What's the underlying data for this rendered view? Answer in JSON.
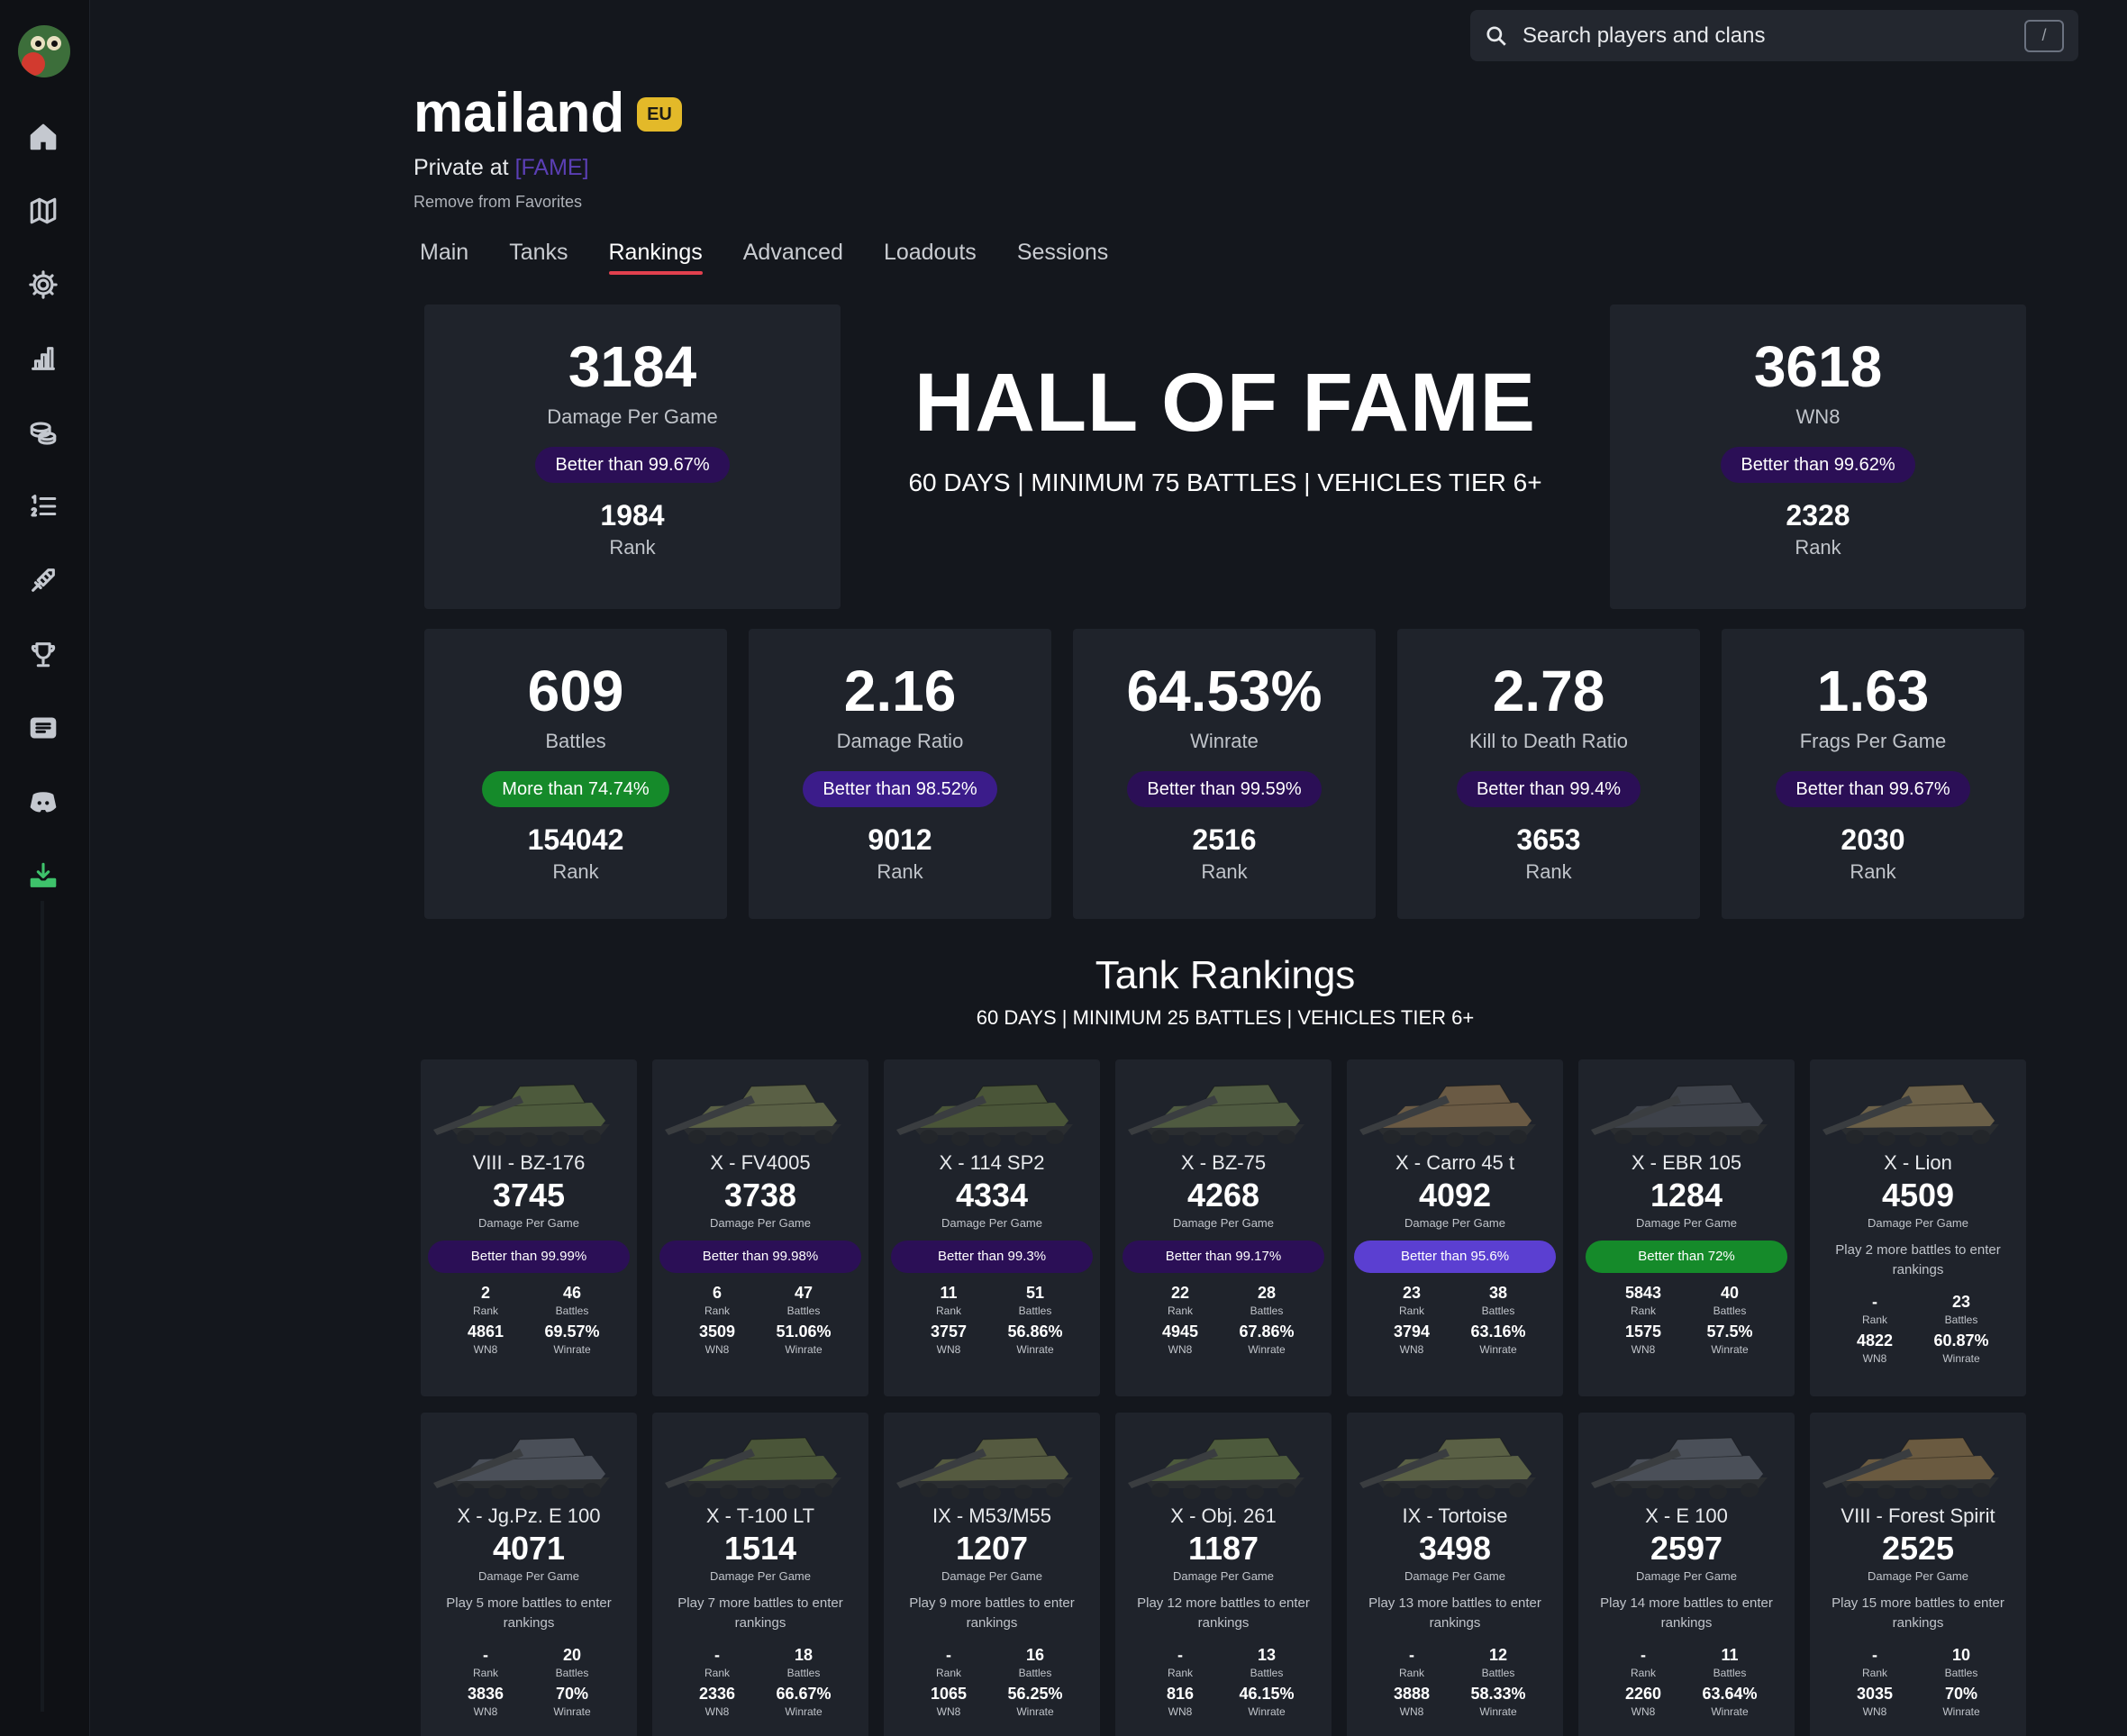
{
  "search": {
    "placeholder": "Search players and clans",
    "shortcut": "/"
  },
  "sidebar": {
    "items": [
      {
        "icon": "home-icon"
      },
      {
        "icon": "map-icon"
      },
      {
        "icon": "gear-icon"
      },
      {
        "icon": "bar-chart-icon"
      },
      {
        "icon": "coins-icon"
      },
      {
        "icon": "ordered-list-icon"
      },
      {
        "icon": "tank-shell-icon"
      },
      {
        "icon": "trophy-icon"
      },
      {
        "icon": "news-icon"
      },
      {
        "icon": "discord-icon"
      },
      {
        "icon": "download-icon"
      }
    ]
  },
  "player": {
    "name": "mailand",
    "region": "EU",
    "role_prefix": "Private at ",
    "clan": "[FAME]",
    "favorites_action": "Remove from Favorites"
  },
  "tabs": [
    "Main",
    "Tanks",
    "Rankings",
    "Advanced",
    "Loadouts",
    "Sessions"
  ],
  "active_tab": "Rankings",
  "hall_of_fame": {
    "title": "HALL OF FAME",
    "subtitle": "60 DAYS | MINIMUM 75 BATTLES | VEHICLES TIER 6+",
    "top_left": {
      "value": "3184",
      "label": "Damage Per Game",
      "badge": "Better than 99.67%",
      "rank": "1984",
      "rank_label": "Rank"
    },
    "top_right": {
      "value": "3618",
      "label": "WN8",
      "badge": "Better than 99.62%",
      "rank": "2328",
      "rank_label": "Rank"
    },
    "stats": [
      {
        "value": "609",
        "label": "Battles",
        "badge": "More than 74.74%",
        "badge_style": "green",
        "rank": "154042",
        "rank_label": "Rank"
      },
      {
        "value": "2.16",
        "label": "Damage Ratio",
        "badge": "Better than 98.52%",
        "badge_style": "mid",
        "rank": "9012",
        "rank_label": "Rank"
      },
      {
        "value": "64.53%",
        "label": "Winrate",
        "badge": "Better than 99.59%",
        "badge_style": "dark",
        "rank": "2516",
        "rank_label": "Rank"
      },
      {
        "value": "2.78",
        "label": "Kill to Death Ratio",
        "badge": "Better than 99.4%",
        "badge_style": "dark",
        "rank": "3653",
        "rank_label": "Rank"
      },
      {
        "value": "1.63",
        "label": "Frags Per Game",
        "badge": "Better than 99.67%",
        "badge_style": "dark",
        "rank": "2030",
        "rank_label": "Rank"
      }
    ]
  },
  "tank_rankings": {
    "title": "Tank Rankings",
    "subtitle": "60 DAYS | MINIMUM 25 BATTLES | VEHICLES TIER 6+",
    "labels": {
      "dpg": "Damage Per Game",
      "rank": "Rank",
      "battles": "Battles",
      "wn8": "WN8",
      "winrate": "Winrate"
    },
    "tanks": [
      {
        "name": "VIII - BZ-176",
        "dpg": "3745",
        "badge": "Better than 99.99%",
        "badge_style": "dark",
        "note": "",
        "rank": "2",
        "battles": "46",
        "wn8": "4861",
        "winrate": "69.57%",
        "color": "#4d5a3c"
      },
      {
        "name": "X - FV4005",
        "dpg": "3738",
        "badge": "Better than 99.98%",
        "badge_style": "dark",
        "note": "",
        "rank": "6",
        "battles": "47",
        "wn8": "3509",
        "winrate": "51.06%",
        "color": "#5a6045"
      },
      {
        "name": "X - 114 SP2",
        "dpg": "4334",
        "badge": "Better than 99.3%",
        "badge_style": "dark",
        "note": "",
        "rank": "11",
        "battles": "51",
        "wn8": "3757",
        "winrate": "56.86%",
        "color": "#4a5538"
      },
      {
        "name": "X - BZ-75",
        "dpg": "4268",
        "badge": "Better than 99.17%",
        "badge_style": "dark",
        "note": "",
        "rank": "22",
        "battles": "28",
        "wn8": "4945",
        "winrate": "67.86%",
        "color": "#4f5a40"
      },
      {
        "name": "X - Carro 45 t",
        "dpg": "4092",
        "badge": "Better than 95.6%",
        "badge_style": "violet",
        "note": "",
        "rank": "23",
        "battles": "38",
        "wn8": "3794",
        "winrate": "63.16%",
        "color": "#6a5a44"
      },
      {
        "name": "X - EBR 105",
        "dpg": "1284",
        "badge": "Better than 72%",
        "badge_style": "green",
        "note": "",
        "rank": "5843",
        "battles": "40",
        "wn8": "1575",
        "winrate": "57.5%",
        "color": "#3e424a"
      },
      {
        "name": "X - Lion",
        "dpg": "4509",
        "badge": "",
        "badge_style": "",
        "note": "Play 2 more battles to enter rankings",
        "rank": "-",
        "battles": "23",
        "wn8": "4822",
        "winrate": "60.87%",
        "color": "#6b6048"
      },
      {
        "name": "X - Jg.Pz. E 100",
        "dpg": "4071",
        "badge": "",
        "badge_style": "",
        "note": "Play 5 more battles to enter rankings",
        "rank": "-",
        "battles": "20",
        "wn8": "3836",
        "winrate": "70%",
        "color": "#4a4f58"
      },
      {
        "name": "X - T-100 LT",
        "dpg": "1514",
        "badge": "",
        "badge_style": "",
        "note": "Play 7 more battles to enter rankings",
        "rank": "-",
        "battles": "18",
        "wn8": "2336",
        "winrate": "66.67%",
        "color": "#4a5538"
      },
      {
        "name": "IX - M53/M55",
        "dpg": "1207",
        "badge": "",
        "badge_style": "",
        "note": "Play 9 more battles to enter rankings",
        "rank": "-",
        "battles": "16",
        "wn8": "1065",
        "winrate": "56.25%",
        "color": "#555a40"
      },
      {
        "name": "X - Obj. 261",
        "dpg": "1187",
        "badge": "",
        "badge_style": "",
        "note": "Play 12 more battles to enter rankings",
        "rank": "-",
        "battles": "13",
        "wn8": "816",
        "winrate": "46.15%",
        "color": "#4d5a3c"
      },
      {
        "name": "IX - Tortoise",
        "dpg": "3498",
        "badge": "",
        "badge_style": "",
        "note": "Play 13 more battles to enter rankings",
        "rank": "-",
        "battles": "12",
        "wn8": "3888",
        "winrate": "58.33%",
        "color": "#5a6045"
      },
      {
        "name": "X - E 100",
        "dpg": "2597",
        "badge": "",
        "badge_style": "",
        "note": "Play 14 more battles to enter rankings",
        "rank": "-",
        "battles": "11",
        "wn8": "2260",
        "winrate": "63.64%",
        "color": "#4a4f58"
      },
      {
        "name": "VIII - Forest Spirit",
        "dpg": "2525",
        "badge": "",
        "badge_style": "",
        "note": "Play 15 more battles to enter rankings",
        "rank": "-",
        "battles": "10",
        "wn8": "3035",
        "winrate": "70%",
        "color": "#6a5a40"
      }
    ]
  }
}
